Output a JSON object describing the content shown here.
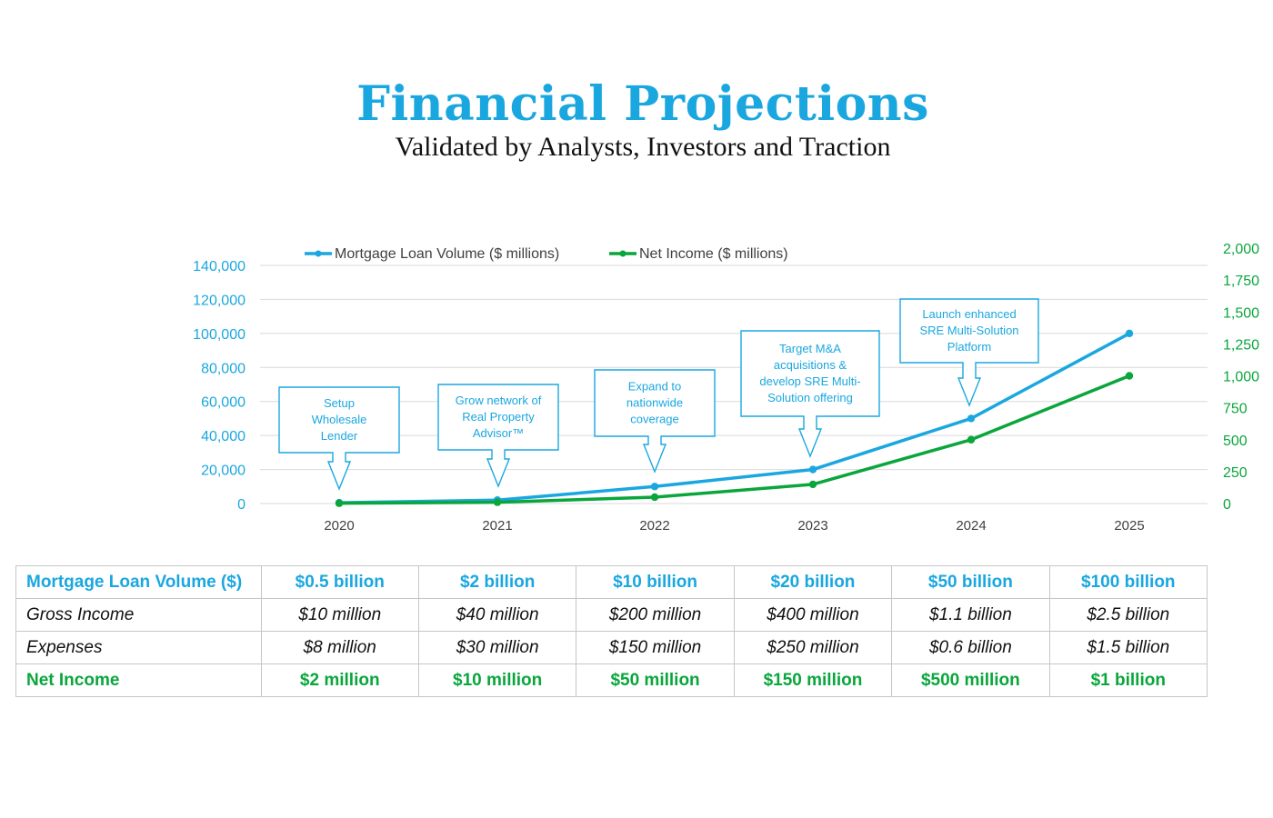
{
  "header": {
    "title": "Financial Projections",
    "subtitle": "Validated by Analysts, Investors and Traction"
  },
  "chart_data": {
    "type": "line",
    "x": [
      "2020",
      "2021",
      "2022",
      "2023",
      "2024",
      "2025"
    ],
    "series": [
      {
        "name": "Mortgage Loan Volume ($ millions)",
        "axis": "left",
        "color": "#1aa7e0",
        "values": [
          500,
          2000,
          10000,
          20000,
          50000,
          100000
        ]
      },
      {
        "name": "Net Income ($ millions)",
        "axis": "right",
        "color": "#0aa63c",
        "values": [
          2,
          10,
          50,
          150,
          500,
          1000
        ]
      }
    ],
    "y_left": {
      "min": 0,
      "max": 140000,
      "ticks": [
        0,
        20000,
        40000,
        60000,
        80000,
        100000,
        120000,
        140000
      ],
      "tick_labels": [
        "0",
        "20,000",
        "40,000",
        "60,000",
        "80,000",
        "100,000",
        "120,000",
        "140,000"
      ]
    },
    "y_right": {
      "min": 0,
      "max": 2000,
      "ticks": [
        0,
        250,
        500,
        750,
        1000,
        1250,
        1500,
        1750,
        2000
      ],
      "tick_labels": [
        "0",
        "250",
        "500",
        "750",
        "1,000",
        "1,250",
        "1,500",
        "1,750",
        "2,000"
      ]
    },
    "grid": true,
    "legend": "top",
    "annotations": [
      {
        "year": "2020",
        "lines": [
          "Setup",
          "Wholesale",
          "Lender"
        ]
      },
      {
        "year": "2021",
        "lines": [
          "Grow network of",
          "Real Property",
          "Advisor™"
        ]
      },
      {
        "year": "2022",
        "lines": [
          "Expand to",
          "nationwide",
          "coverage"
        ]
      },
      {
        "year": "2023",
        "lines": [
          "Target M&A",
          "acquisitions &",
          "develop SRE Multi-",
          "Solution offering"
        ]
      },
      {
        "year": "2024",
        "lines": [
          "Launch enhanced",
          "SRE Multi-Solution",
          "Platform"
        ]
      }
    ]
  },
  "table": {
    "rows": [
      {
        "style": "blue",
        "label": "Mortgage Loan Volume ($)",
        "values": [
          "$0.5 billion",
          "$2 billion",
          "$10 billion",
          "$20 billion",
          "$50 billion",
          "$100 billion"
        ]
      },
      {
        "style": "italic",
        "label": "Gross Income",
        "values": [
          "$10 million",
          "$40 million",
          "$200 million",
          "$400 million",
          "$1.1 billion",
          "$2.5 billion"
        ]
      },
      {
        "style": "italic",
        "label": "Expenses",
        "values": [
          "$8 million",
          "$30 million",
          "$150 million",
          "$250 million",
          "$0.6 billion",
          "$1.5 billion"
        ]
      },
      {
        "style": "green",
        "label": "Net Income",
        "values": [
          "$2 million",
          "$10 million",
          "$50 million",
          "$150 million",
          "$500 million",
          "$1 billion"
        ]
      }
    ]
  }
}
